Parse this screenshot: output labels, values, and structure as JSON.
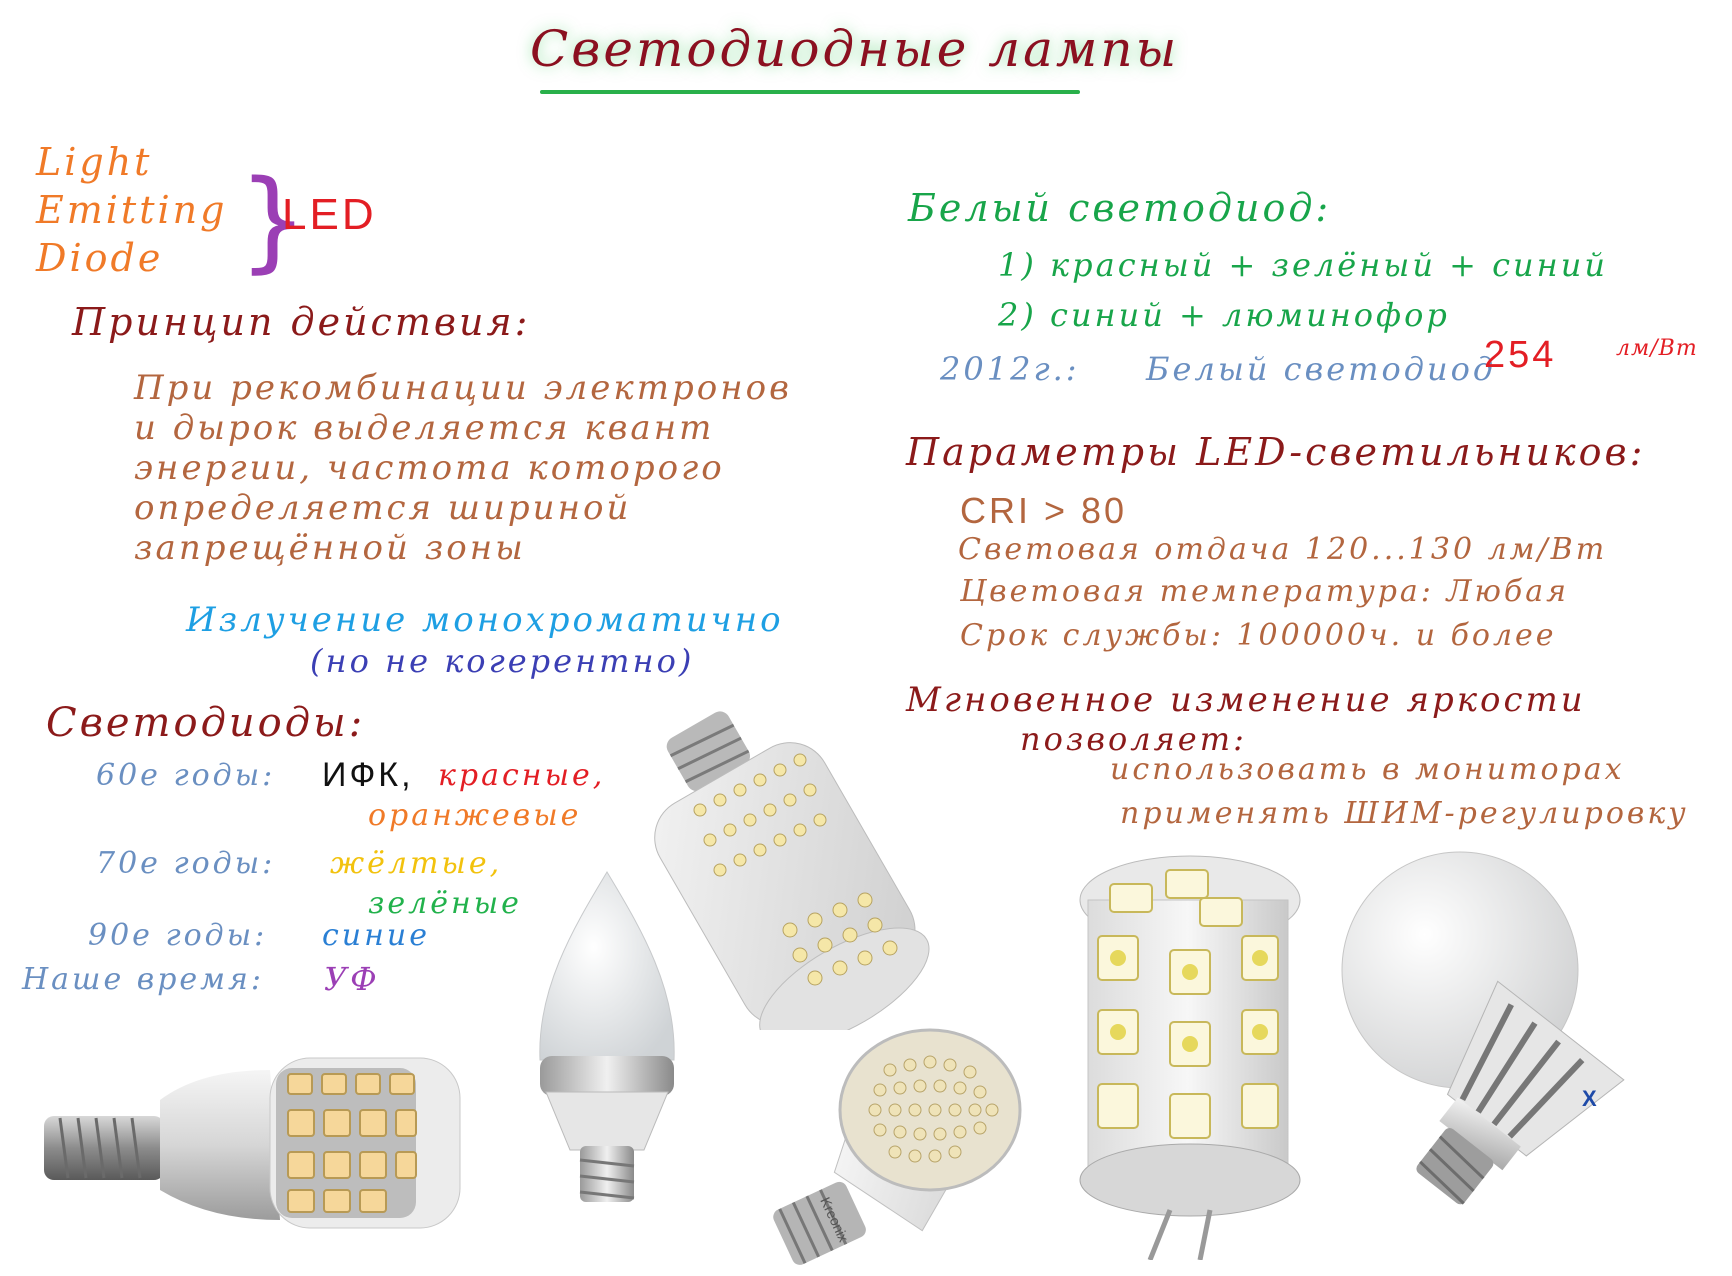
{
  "title": "Светодиодные лампы",
  "acronym": {
    "words": [
      "Light",
      "Emitting",
      "Diode"
    ],
    "abbr": "LED"
  },
  "principle": {
    "heading": "Принцип действия:",
    "lines": [
      "При рекомбинации электронов",
      "и дырок выделяется квант",
      "энергии, частота которого",
      "определяется шириной",
      "запрещённой зоны"
    ],
    "note1": "Излучение монохроматично",
    "note2": "(но не когерентно)"
  },
  "leds": {
    "heading": "Светодиоды:",
    "rows": [
      {
        "period": "60е годы:",
        "items": [
          "ИФК,",
          "красные,",
          "оранжевые"
        ]
      },
      {
        "period": "70е годы:",
        "items": [
          "жёлтые,",
          "зелёные"
        ]
      },
      {
        "period": "90е годы:",
        "items": [
          "синие"
        ]
      },
      {
        "period": "Наше время:",
        "items": [
          "УФ"
        ]
      }
    ]
  },
  "white_led": {
    "heading": "Белый светодиод:",
    "options": [
      "1) красный + зелёный + синий",
      "2) синий + люминофор"
    ],
    "record_year": "2012г.:",
    "record_label": "Белый светодиод",
    "record_value": "254",
    "record_unit": "лм/Вт"
  },
  "params": {
    "heading": "Параметры LED-светильников:",
    "items": [
      "CRI > 80",
      "Световая отдача 120...130 лм/Вт",
      "Цветовая температура: Любая",
      "Срок службы: 100000ч. и более"
    ]
  },
  "dimming": {
    "heading": "Мгновенное изменение яркости",
    "heading2": "позволяет:",
    "items": [
      "использовать в мониторах",
      "применять ШИМ-регулировку"
    ]
  },
  "lamp_labels": {
    "brand1": "Kreonix",
    "brand2": "X"
  },
  "colors": {
    "title": "#8b1020",
    "orange": "#f07a28",
    "red": "#e31e24",
    "green": "#18a54a",
    "brown": "#b3663f",
    "steel": "#6a8fc1",
    "cyan": "#1e9fe3",
    "purple": "#9b3fb5"
  }
}
